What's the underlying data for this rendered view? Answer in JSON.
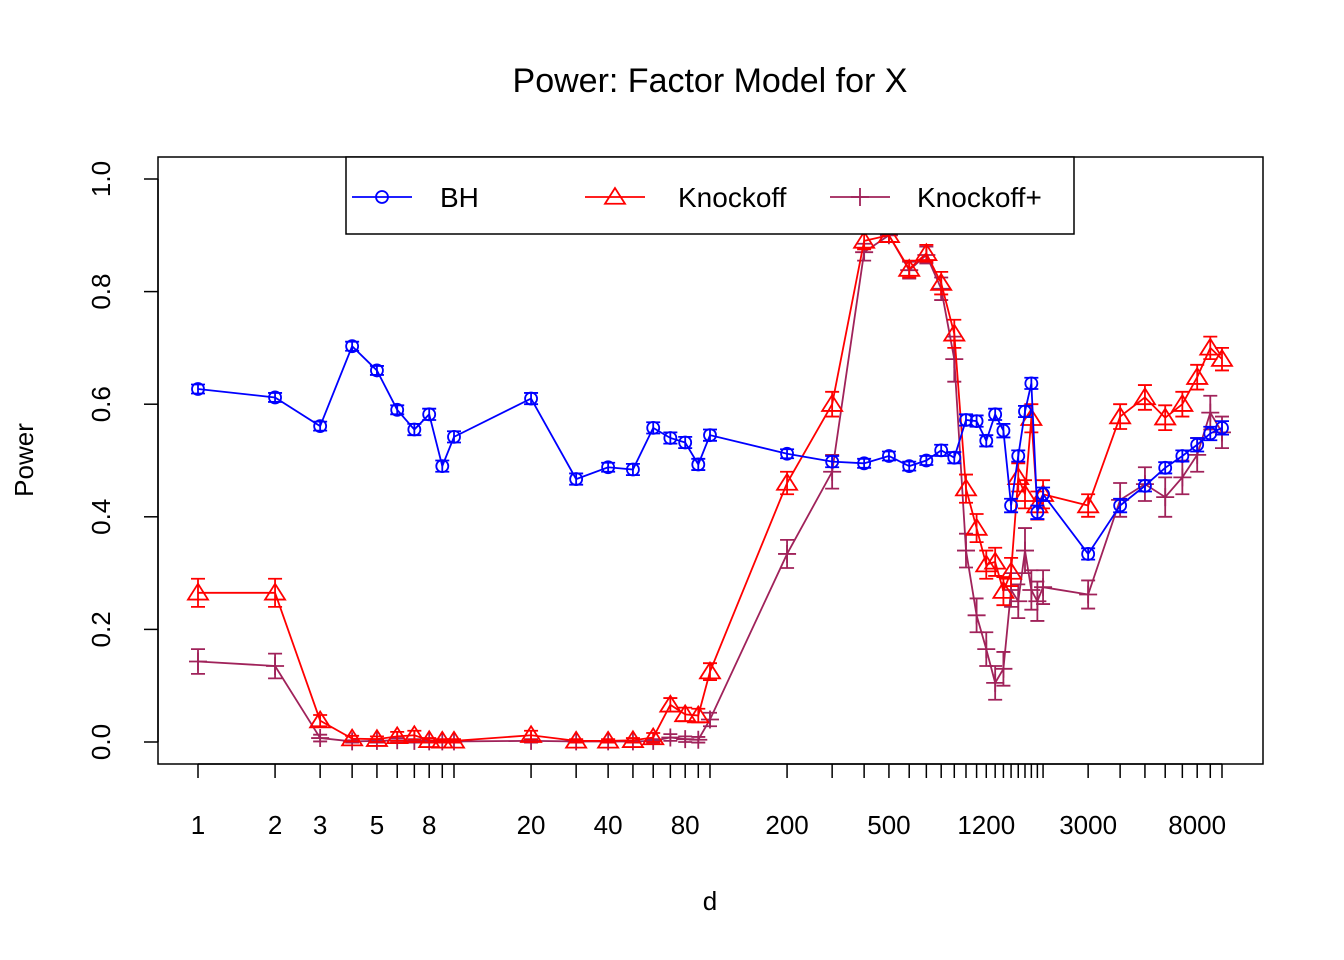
{
  "chart_data": {
    "type": "line",
    "title": "Power: Factor Model for X",
    "xlabel": "d",
    "ylabel": "Power",
    "x_scale": "log",
    "ylim": [
      0,
      1.0
    ],
    "y_ticks": [
      0.0,
      0.2,
      0.4,
      0.6,
      0.8,
      1.0
    ],
    "y_tick_labels": [
      "0.0",
      "0.2",
      "0.4",
      "0.6",
      "0.8",
      "1.0"
    ],
    "x_ticks": [
      1,
      2,
      3,
      4,
      5,
      6,
      7,
      8,
      9,
      10,
      20,
      30,
      40,
      50,
      60,
      70,
      80,
      90,
      100,
      200,
      300,
      400,
      500,
      600,
      700,
      800,
      900,
      1000,
      1100,
      1200,
      1300,
      1400,
      1500,
      1600,
      1700,
      1800,
      1900,
      2000,
      3000,
      4000,
      5000,
      6000,
      7000,
      8000,
      9000,
      10000
    ],
    "x_tick_labels": [
      "1",
      "2",
      "3",
      "5",
      "8",
      "20",
      "40",
      "80",
      "200",
      "500",
      "1200",
      "3000",
      "8000"
    ],
    "legend": {
      "position": "top",
      "entries": [
        "BH",
        "Knockoff",
        "Knockoff+"
      ]
    },
    "colors": {
      "BH": "#0000ff",
      "Knockoff": "#ff0000",
      "Knockoff+": "#a0225a"
    },
    "series": [
      {
        "name": "BH",
        "marker": "circle",
        "x": [
          1,
          2,
          3,
          4,
          5,
          6,
          7,
          8,
          9,
          10,
          20,
          30,
          40,
          50,
          60,
          70,
          80,
          90,
          100,
          200,
          300,
          400,
          500,
          600,
          700,
          800,
          900,
          1000,
          1100,
          1200,
          1300,
          1400,
          1500,
          1600,
          1700,
          1800,
          1900,
          2000,
          3000,
          4000,
          5000,
          6000,
          7000,
          8000,
          9000,
          10000
        ],
        "y": [
          0.627,
          0.612,
          0.561,
          0.703,
          0.66,
          0.59,
          0.555,
          0.582,
          0.49,
          0.542,
          0.61,
          0.467,
          0.488,
          0.484,
          0.558,
          0.54,
          0.532,
          0.493,
          0.545,
          0.512,
          0.498,
          0.495,
          0.508,
          0.49,
          0.5,
          0.518,
          0.505,
          0.572,
          0.57,
          0.535,
          0.582,
          0.553,
          0.42,
          0.508,
          0.587,
          0.637,
          0.408,
          0.44,
          0.334,
          0.42,
          0.455,
          0.487,
          0.508,
          0.528,
          0.548,
          0.558
        ],
        "err": [
          0.008,
          0.008,
          0.008,
          0.008,
          0.008,
          0.008,
          0.01,
          0.01,
          0.01,
          0.01,
          0.01,
          0.01,
          0.008,
          0.01,
          0.01,
          0.01,
          0.01,
          0.01,
          0.01,
          0.008,
          0.01,
          0.008,
          0.008,
          0.008,
          0.008,
          0.01,
          0.01,
          0.01,
          0.01,
          0.01,
          0.01,
          0.012,
          0.012,
          0.01,
          0.01,
          0.01,
          0.012,
          0.012,
          0.01,
          0.012,
          0.01,
          0.01,
          0.01,
          0.012,
          0.012,
          0.012
        ]
      },
      {
        "name": "Knockoff",
        "marker": "triangle",
        "x": [
          1,
          2,
          3,
          4,
          5,
          6,
          7,
          8,
          9,
          10,
          20,
          30,
          40,
          50,
          60,
          70,
          80,
          90,
          100,
          200,
          300,
          400,
          500,
          600,
          700,
          800,
          900,
          1000,
          1100,
          1200,
          1300,
          1400,
          1500,
          1600,
          1700,
          1800,
          1900,
          2000,
          3000,
          4000,
          5000,
          6000,
          7000,
          8000,
          9000,
          10000
        ],
        "y": [
          0.265,
          0.265,
          0.038,
          0.006,
          0.005,
          0.01,
          0.012,
          0.003,
          0.002,
          0.002,
          0.012,
          0.002,
          0.002,
          0.003,
          0.008,
          0.066,
          0.049,
          0.047,
          0.125,
          0.46,
          0.6,
          0.89,
          0.9,
          0.84,
          0.868,
          0.815,
          0.725,
          0.45,
          0.38,
          0.315,
          0.32,
          0.268,
          0.302,
          0.47,
          0.44,
          0.575,
          0.42,
          0.44,
          0.42,
          0.578,
          0.612,
          0.576,
          0.6,
          0.648,
          0.7,
          0.68
        ],
        "err": [
          0.025,
          0.025,
          0.01,
          0.005,
          0.005,
          0.008,
          0.008,
          0.004,
          0.003,
          0.003,
          0.008,
          0.003,
          0.003,
          0.004,
          0.008,
          0.012,
          0.012,
          0.012,
          0.015,
          0.02,
          0.022,
          0.015,
          0.012,
          0.015,
          0.015,
          0.02,
          0.025,
          0.025,
          0.025,
          0.025,
          0.025,
          0.025,
          0.025,
          0.025,
          0.025,
          0.025,
          0.025,
          0.025,
          0.02,
          0.022,
          0.022,
          0.022,
          0.022,
          0.022,
          0.02,
          0.02
        ]
      },
      {
        "name": "Knockoff+",
        "marker": "plus",
        "x": [
          1,
          2,
          3,
          4,
          5,
          6,
          7,
          8,
          9,
          10,
          20,
          30,
          40,
          50,
          60,
          70,
          80,
          90,
          100,
          200,
          300,
          400,
          500,
          600,
          700,
          800,
          900,
          1000,
          1100,
          1200,
          1300,
          1400,
          1500,
          1600,
          1700,
          1800,
          1900,
          2000,
          3000,
          4000,
          5000,
          6000,
          7000,
          8000,
          9000,
          10000
        ],
        "y": [
          0.143,
          0.135,
          0.007,
          0.001,
          0.002,
          0.003,
          0.002,
          0.001,
          0.001,
          0.001,
          0.002,
          0.001,
          0.001,
          0.001,
          0.002,
          0.008,
          0.005,
          0.004,
          0.04,
          0.334,
          0.48,
          0.87,
          0.9,
          0.838,
          0.865,
          0.805,
          0.68,
          0.34,
          0.225,
          0.165,
          0.105,
          0.13,
          0.27,
          0.25,
          0.34,
          0.27,
          0.25,
          0.275,
          0.262,
          0.43,
          0.458,
          0.435,
          0.47,
          0.51,
          0.585,
          0.55
        ],
        "err": [
          0.022,
          0.022,
          0.006,
          0.002,
          0.003,
          0.004,
          0.003,
          0.002,
          0.002,
          0.002,
          0.003,
          0.002,
          0.002,
          0.002,
          0.003,
          0.006,
          0.005,
          0.005,
          0.012,
          0.025,
          0.03,
          0.015,
          0.012,
          0.015,
          0.015,
          0.02,
          0.04,
          0.03,
          0.03,
          0.03,
          0.03,
          0.03,
          0.03,
          0.03,
          0.04,
          0.035,
          0.035,
          0.03,
          0.025,
          0.03,
          0.03,
          0.035,
          0.03,
          0.03,
          0.03,
          0.028
        ]
      }
    ]
  }
}
